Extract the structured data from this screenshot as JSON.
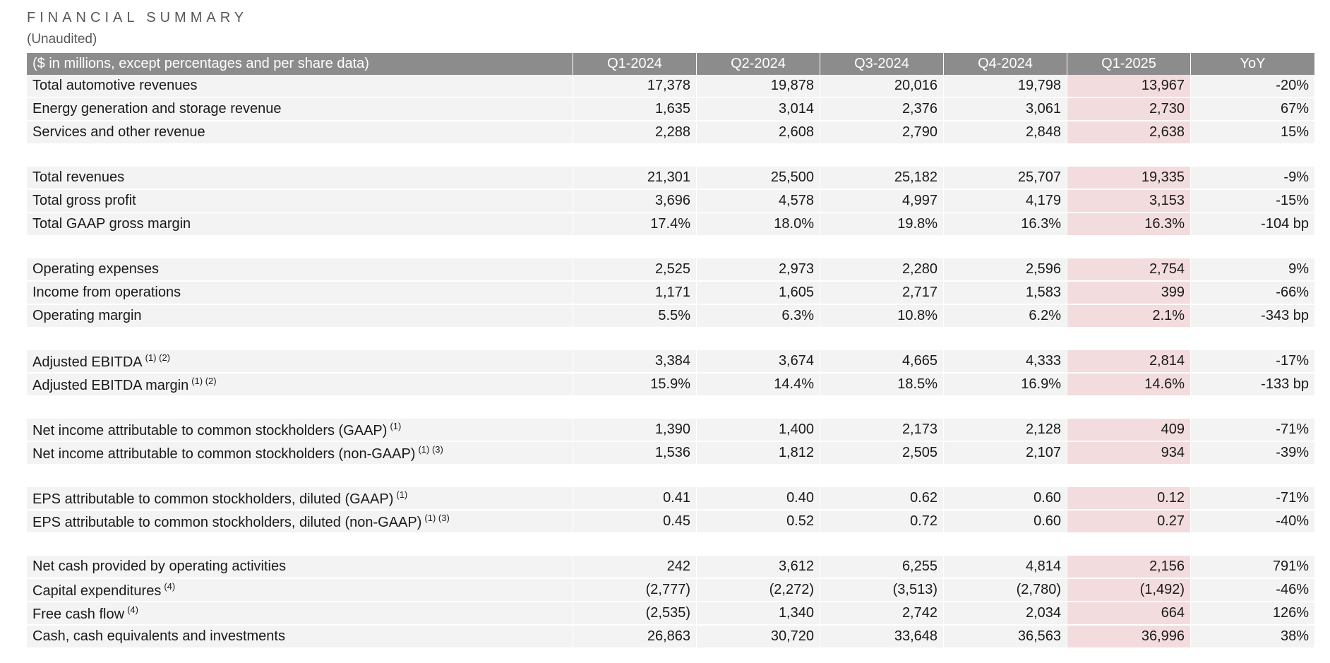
{
  "header": {
    "title": "FINANCIAL SUMMARY",
    "subtitle": "(Unaudited)"
  },
  "table": {
    "columns": [
      "($ in millions, except percentages and per share data)",
      "Q1-2024",
      "Q2-2024",
      "Q3-2024",
      "Q4-2024",
      "Q1-2025",
      "YoY"
    ],
    "highlight_color": "#f2dcdd",
    "header_color": "#8c8c8c",
    "groups": [
      [
        {
          "label": "Total automotive revenues",
          "sup": "",
          "values": [
            "17,378",
            "19,878",
            "20,016",
            "19,798",
            "13,967",
            "-20%"
          ]
        },
        {
          "label": "Energy generation and storage revenue",
          "sup": "",
          "values": [
            "1,635",
            "3,014",
            "2,376",
            "3,061",
            "2,730",
            "67%"
          ]
        },
        {
          "label": "Services and other revenue",
          "sup": "",
          "values": [
            "2,288",
            "2,608",
            "2,790",
            "2,848",
            "2,638",
            "15%"
          ]
        }
      ],
      [
        {
          "label": "Total revenues",
          "sup": "",
          "values": [
            "21,301",
            "25,500",
            "25,182",
            "25,707",
            "19,335",
            "-9%"
          ]
        },
        {
          "label": "Total gross profit",
          "sup": "",
          "values": [
            "3,696",
            "4,578",
            "4,997",
            "4,179",
            "3,153",
            "-15%"
          ]
        },
        {
          "label": "Total GAAP gross margin",
          "sup": "",
          "values": [
            "17.4%",
            "18.0%",
            "19.8%",
            "16.3%",
            "16.3%",
            "-104 bp"
          ]
        }
      ],
      [
        {
          "label": "Operating expenses",
          "sup": "",
          "values": [
            "2,525",
            "2,973",
            "2,280",
            "2,596",
            "2,754",
            "9%"
          ]
        },
        {
          "label": "Income from operations",
          "sup": "",
          "values": [
            "1,171",
            "1,605",
            "2,717",
            "1,583",
            "399",
            "-66%"
          ]
        },
        {
          "label": "Operating margin",
          "sup": "",
          "values": [
            "5.5%",
            "6.3%",
            "10.8%",
            "6.2%",
            "2.1%",
            "-343 bp"
          ]
        }
      ],
      [
        {
          "label": "Adjusted EBITDA",
          "sup": "(1) (2)",
          "values": [
            "3,384",
            "3,674",
            "4,665",
            "4,333",
            "2,814",
            "-17%"
          ]
        },
        {
          "label": "Adjusted EBITDA margin",
          "sup": "(1) (2)",
          "values": [
            "15.9%",
            "14.4%",
            "18.5%",
            "16.9%",
            "14.6%",
            "-133 bp"
          ]
        }
      ],
      [
        {
          "label": "Net income attributable to common stockholders (GAAP)",
          "sup": "(1)",
          "values": [
            "1,390",
            "1,400",
            "2,173",
            "2,128",
            "409",
            "-71%"
          ]
        },
        {
          "label": "Net income attributable to common stockholders (non-GAAP)",
          "sup": "(1) (3)",
          "values": [
            "1,536",
            "1,812",
            "2,505",
            "2,107",
            "934",
            "-39%"
          ]
        }
      ],
      [
        {
          "label": "EPS attributable to common stockholders, diluted (GAAP)",
          "sup": "(1)",
          "values": [
            "0.41",
            "0.40",
            "0.62",
            "0.60",
            "0.12",
            "-71%"
          ]
        },
        {
          "label": "EPS attributable to common stockholders, diluted (non-GAAP)",
          "sup": "(1) (3)",
          "values": [
            "0.45",
            "0.52",
            "0.72",
            "0.60",
            "0.27",
            "-40%"
          ]
        }
      ],
      [
        {
          "label": "Net cash provided by operating activities",
          "sup": "",
          "values": [
            "242",
            "3,612",
            "6,255",
            "4,814",
            "2,156",
            "791%"
          ]
        },
        {
          "label": "Capital expenditures",
          "sup": "(4)",
          "values": [
            "(2,777)",
            "(2,272)",
            "(3,513)",
            "(2,780)",
            "(1,492)",
            "-46%"
          ]
        },
        {
          "label": "Free cash flow",
          "sup": "(4)",
          "values": [
            "(2,535)",
            "1,340",
            "2,742",
            "2,034",
            "664",
            "126%"
          ]
        },
        {
          "label": "Cash, cash equivalents and investments",
          "sup": "",
          "values": [
            "26,863",
            "30,720",
            "33,648",
            "36,563",
            "36,996",
            "38%"
          ]
        }
      ]
    ]
  }
}
